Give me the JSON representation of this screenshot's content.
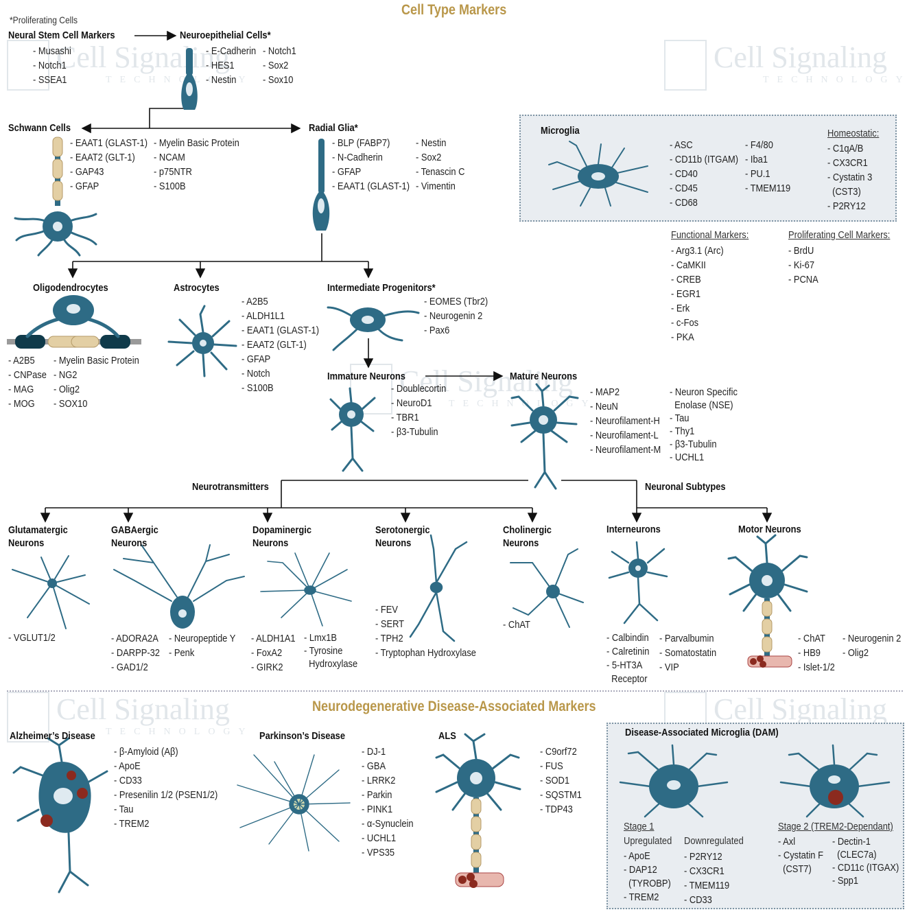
{
  "title": "Cell Type Markers",
  "note": "*Proliferating Cells",
  "watermark": {
    "line1": "Cell Signaling",
    "line2": "TECHNOLOGY"
  },
  "colors": {
    "cell": "#2e6b85",
    "title": "#b9974a",
    "myelin": "#e3cfa4",
    "damage": "#8b2a1f"
  },
  "neural_stem": {
    "title": "Neural Stem Cell Markers",
    "markers": [
      "- Musashi",
      "- Notch1",
      "- SSEA1"
    ]
  },
  "neuroepithelial": {
    "title": "Neuroepithelial Cells*",
    "col1": [
      "- E-Cadherin",
      "- HES1",
      "- Nestin"
    ],
    "col2": [
      "- Notch1",
      "- Sox2",
      "- Sox10"
    ]
  },
  "schwann": {
    "title": "Schwann Cells",
    "col1": [
      "- EAAT1 (GLAST-1)",
      "- EAAT2 (GLT-1)",
      "- GAP43",
      "- GFAP"
    ],
    "col2": [
      "- Myelin Basic Protein",
      "- NCAM",
      "- p75NTR",
      "- S100B"
    ]
  },
  "radial_glia": {
    "title": "Radial Glia*",
    "col1": [
      "- BLP (FABP7)",
      "- N-Cadherin",
      "- GFAP",
      "- EAAT1 (GLAST-1)"
    ],
    "col2": [
      "- Nestin",
      "- Sox2",
      "- Tenascin C",
      "- Vimentin"
    ]
  },
  "microglia": {
    "title": "Microglia",
    "col1": [
      "- ASC",
      "- CD11b (ITGAM)",
      "- CD40",
      "- CD45",
      "- CD68"
    ],
    "col2": [
      "- F4/80",
      "- Iba1",
      "- PU.1",
      "- TMEM119"
    ],
    "homeostatic_title": "Homeostatic:",
    "homeostatic": [
      "- C1qA/B",
      "- CX3CR1",
      "- Cystatin 3",
      "  (CST3)",
      "- P2RY12"
    ]
  },
  "functional": {
    "title": "Functional Markers:",
    "markers": [
      "- Arg3.1 (Arc)",
      "- CaMKII",
      "- CREB",
      "- EGR1",
      "- Erk",
      "- c-Fos",
      "- PKA"
    ]
  },
  "proliferating": {
    "title": "Proliferating Cell Markers:",
    "markers": [
      "- BrdU",
      "- Ki-67",
      "- PCNA"
    ]
  },
  "oligodendrocytes": {
    "title": "Oligodendrocytes",
    "col1": [
      "- A2B5",
      "- CNPase",
      "- MAG",
      "- MOG"
    ],
    "col2": [
      "- Myelin Basic Protein",
      "- NG2",
      "- Olig2",
      "- SOX10"
    ]
  },
  "astrocytes": {
    "title": "Astrocytes",
    "markers": [
      "- A2B5",
      "- ALDH1L1",
      "- EAAT1 (GLAST-1)",
      "- EAAT2 (GLT-1)",
      "- GFAP",
      "- Notch",
      "- S100B"
    ]
  },
  "intermediate": {
    "title": "Intermediate Progenitors*",
    "markers": [
      "- EOMES (Tbr2)",
      "- Neurogenin 2",
      "- Pax6"
    ]
  },
  "immature": {
    "title": "Immature Neurons",
    "markers": [
      "- Doublecortin",
      "- NeuroD1",
      "- TBR1",
      "- β3-Tubulin"
    ]
  },
  "mature": {
    "title": "Mature Neurons",
    "col1": [
      "- MAP2",
      "- NeuN",
      "- Neurofilament-H",
      "- Neurofilament-L",
      "- Neurofilament-M"
    ],
    "col2": [
      "- Neuron Specific",
      "  Enolase (NSE)",
      "- Tau",
      "- Thy1",
      "- β3-Tubulin",
      "- UCHL1"
    ]
  },
  "neurotransmitters": "Neurotransmitters",
  "neuronal_subtypes": "Neuronal Subtypes",
  "glutamatergic": {
    "title1": "Glutamatergic",
    "title2": "Neurons",
    "markers": [
      "- VGLUT1/2"
    ]
  },
  "gabaergic": {
    "title1": "GABAergic",
    "title2": "Neurons",
    "col1": [
      "- ADORA2A",
      "- DARPP-32",
      "- GAD1/2"
    ],
    "col2": [
      "- Neuropeptide Y",
      "- Penk"
    ]
  },
  "dopaminergic": {
    "title1": "Dopaminergic",
    "title2": "Neurons",
    "col1": [
      "- ALDH1A1",
      "- FoxA2",
      "- GIRK2"
    ],
    "col2": [
      "- Lmx1B",
      "- Tyrosine",
      "  Hydroxylase"
    ]
  },
  "serotonergic": {
    "title1": "Serotonergic",
    "title2": "Neurons",
    "markers": [
      "- FEV",
      "- SERT",
      "- TPH2",
      "- Tryptophan Hydroxylase"
    ]
  },
  "cholinergic": {
    "title1": "Cholinergic",
    "title2": "Neurons",
    "markers": [
      "- ChAT"
    ]
  },
  "interneurons": {
    "title": "Interneurons",
    "col1": [
      "- Calbindin",
      "- Calretinin",
      "- 5-HT3A",
      "  Receptor"
    ],
    "col2": [
      "- Parvalbumin",
      "- Somatostatin",
      "- VIP"
    ]
  },
  "motor": {
    "title": "Motor Neurons",
    "col1": [
      "- ChAT",
      "- HB9",
      "- Islet-1/2"
    ],
    "col2": [
      "- Neurogenin 2",
      "- Olig2"
    ]
  },
  "disease_title": "Neurodegenerative Disease-Associated Markers",
  "alzheimers": {
    "title": "Alzheimer’s Disease",
    "markers": [
      "- β-Amyloid (Aβ)",
      "- ApoE",
      "- CD33",
      "- Presenilin 1/2 (PSEN1/2)",
      "- Tau",
      "- TREM2"
    ]
  },
  "parkinsons": {
    "title": "Parkinson’s Disease",
    "markers": [
      "- DJ-1",
      "- GBA",
      "- LRRK2",
      "- Parkin",
      "- PINK1",
      "- α-Synuclein",
      "- UCHL1",
      "- VPS35"
    ]
  },
  "als": {
    "title": "ALS",
    "markers": [
      "- C9orf72",
      "- FUS",
      "- SOD1",
      "- SQSTM1",
      "- TDP43"
    ]
  },
  "dam": {
    "title": "Disease-Associated Microglia (DAM)",
    "stage1": "Stage 1",
    "upregulated_title": "Upregulated",
    "upregulated": [
      "- ApoE",
      "- DAP12",
      "  (TYROBP)",
      "- TREM2"
    ],
    "downregulated_title": "Downregulated",
    "downregulated": [
      "- P2RY12",
      "- CX3CR1",
      "- TMEM119",
      "- CD33"
    ],
    "stage2": "Stage 2 (TREM2-Dependant)",
    "stage2_col1": [
      "- Axl",
      "- Cystatin F",
      "  (CST7)"
    ],
    "stage2_col2": [
      "- Dectin-1",
      "  (CLEC7a)",
      "- CD11c (ITGAX)",
      "- Spp1"
    ]
  }
}
